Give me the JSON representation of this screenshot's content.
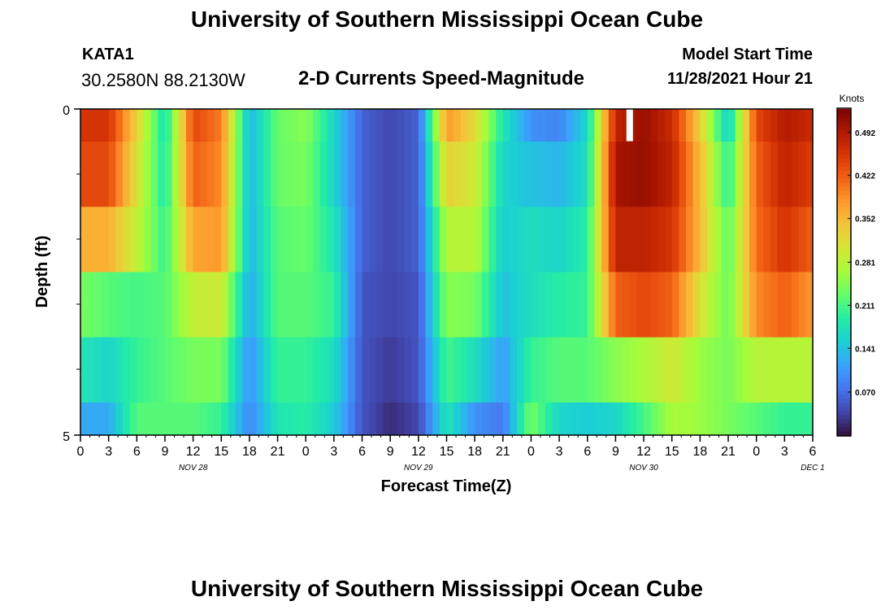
{
  "header": {
    "title": "University of Southern Mississippi Ocean Cube",
    "station_name": "KATA1",
    "station_coords": "30.2580N  88.2130W",
    "chart_subtitle": "2-D Currents Speed-Magnitude",
    "model_start_label": "Model Start Time",
    "model_start_value": "11/28/2021 Hour 21"
  },
  "footer": {
    "title": "University of Southern Mississippi Ocean Cube"
  },
  "chart_data": {
    "type": "heatmap",
    "title": "2-D Currents Speed-Magnitude",
    "xlabel": "Forecast Time(Z)",
    "ylabel": "Depth (ft)",
    "colorbar_label": "Knots",
    "colorbar_ticks": [
      "0.070",
      "0.141",
      "0.211",
      "0.281",
      "0.352",
      "0.422",
      "0.492"
    ],
    "colorbar_values": [
      0.07,
      0.141,
      0.211,
      0.281,
      0.352,
      0.422,
      0.492
    ],
    "color_range": [
      0.0,
      0.53
    ],
    "colormap": [
      "#30123b",
      "#4145ab",
      "#4675ed",
      "#39a2fc",
      "#1bcfd4",
      "#24eca6",
      "#61fc6c",
      "#a4fc3b",
      "#d1e834",
      "#f3c63a",
      "#fe9b2d",
      "#f36315",
      "#d93806",
      "#b11901",
      "#7a0402"
    ],
    "y_range": [
      0,
      5
    ],
    "y_ticks": [
      "0",
      "5"
    ],
    "x_ticks": [
      "0",
      "3",
      "6",
      "9",
      "12",
      "15",
      "18",
      "21",
      "0",
      "3",
      "6",
      "9",
      "12",
      "15",
      "18",
      "21",
      "0",
      "3",
      "6",
      "9",
      "12",
      "15",
      "18",
      "21",
      "0",
      "3",
      "6"
    ],
    "date_labels": [
      {
        "label": "NOV 28",
        "hour": 12
      },
      {
        "label": "NOV 29",
        "hour": 36
      },
      {
        "label": "NOV 30",
        "hour": 60
      },
      {
        "label": "DEC 1",
        "hour": 78
      }
    ],
    "x_range_hours": [
      0,
      78
    ],
    "depth_bands": [
      {
        "from": 0.0,
        "to": 0.5
      },
      {
        "from": 0.5,
        "to": 1.5
      },
      {
        "from": 1.5,
        "to": 2.5
      },
      {
        "from": 2.5,
        "to": 3.5
      },
      {
        "from": 3.5,
        "to": 4.5
      },
      {
        "from": 4.5,
        "to": 5.0
      }
    ],
    "time_hours": [
      0,
      3,
      6,
      9,
      12,
      15,
      18,
      21,
      24,
      27,
      30,
      33,
      36,
      39,
      42,
      45,
      48,
      51,
      54,
      57,
      60,
      63,
      66,
      69,
      72,
      75,
      78
    ],
    "speed_knots": [
      [
        0.46,
        0.46,
        0.33,
        0.17,
        0.44,
        0.4,
        0.13,
        0.23,
        0.25,
        0.16,
        0.06,
        0.04,
        0.06,
        0.38,
        0.32,
        0.18,
        0.1,
        0.09,
        0.16,
        0.48,
        0.51,
        0.47,
        0.33,
        0.15,
        0.44,
        0.49,
        0.47
      ],
      [
        0.44,
        0.44,
        0.31,
        0.18,
        0.42,
        0.39,
        0.13,
        0.23,
        0.24,
        0.16,
        0.06,
        0.04,
        0.06,
        0.33,
        0.3,
        0.16,
        0.14,
        0.13,
        0.17,
        0.5,
        0.51,
        0.48,
        0.35,
        0.19,
        0.42,
        0.48,
        0.45
      ],
      [
        0.36,
        0.36,
        0.29,
        0.2,
        0.37,
        0.38,
        0.13,
        0.22,
        0.23,
        0.18,
        0.06,
        0.04,
        0.06,
        0.28,
        0.28,
        0.15,
        0.17,
        0.16,
        0.19,
        0.48,
        0.48,
        0.46,
        0.35,
        0.22,
        0.41,
        0.46,
        0.42
      ],
      [
        0.24,
        0.22,
        0.21,
        0.22,
        0.29,
        0.3,
        0.12,
        0.22,
        0.22,
        0.2,
        0.05,
        0.04,
        0.05,
        0.25,
        0.24,
        0.14,
        0.17,
        0.19,
        0.2,
        0.42,
        0.44,
        0.42,
        0.31,
        0.23,
        0.39,
        0.42,
        0.38
      ],
      [
        0.18,
        0.16,
        0.2,
        0.22,
        0.24,
        0.24,
        0.1,
        0.2,
        0.2,
        0.17,
        0.05,
        0.03,
        0.05,
        0.21,
        0.17,
        0.11,
        0.2,
        0.22,
        0.22,
        0.25,
        0.27,
        0.3,
        0.26,
        0.24,
        0.28,
        0.28,
        0.28
      ],
      [
        0.12,
        0.12,
        0.22,
        0.22,
        0.22,
        0.2,
        0.09,
        0.18,
        0.19,
        0.15,
        0.05,
        0.02,
        0.04,
        0.18,
        0.1,
        0.08,
        0.24,
        0.16,
        0.15,
        0.16,
        0.21,
        0.27,
        0.26,
        0.24,
        0.22,
        0.2,
        0.2
      ]
    ],
    "missing_marker": {
      "hour": 58.5,
      "depth": 0.25
    }
  }
}
